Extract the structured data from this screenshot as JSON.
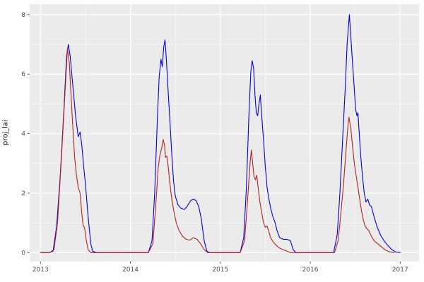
{
  "chart_data": {
    "type": "line",
    "title": "",
    "xlabel": "",
    "ylabel": "proj_lai",
    "xlim": [
      2012.88,
      2017.21
    ],
    "ylim": [
      -0.3,
      8.35
    ],
    "x_ticks": [
      2013,
      2014,
      2015,
      2016,
      2017
    ],
    "y_ticks": [
      0,
      2,
      4,
      6,
      8
    ],
    "x_minor": [
      2013.5,
      2014.5,
      2015.5,
      2016.5
    ],
    "y_minor": [
      1,
      3,
      5,
      7
    ],
    "grid": true,
    "legend": "none",
    "panel_bg": "#EBEBEB",
    "grid_color": "#FFFFFF",
    "tick_label_color": "#4d4d4d",
    "tick_mark_color": "#333333",
    "series": [
      {
        "name": "blue",
        "color": "#0000DD",
        "points": [
          [
            2013.0,
            0
          ],
          [
            2013.1,
            0
          ],
          [
            2013.14,
            0.05
          ],
          [
            2013.18,
            0.9
          ],
          [
            2013.22,
            2.6
          ],
          [
            2013.26,
            4.8
          ],
          [
            2013.29,
            6.6
          ],
          [
            2013.31,
            7.0
          ],
          [
            2013.33,
            6.6
          ],
          [
            2013.36,
            5.6
          ],
          [
            2013.39,
            4.6
          ],
          [
            2013.42,
            3.9
          ],
          [
            2013.44,
            4.05
          ],
          [
            2013.46,
            3.6
          ],
          [
            2013.48,
            2.9
          ],
          [
            2013.5,
            2.3
          ],
          [
            2013.53,
            1.2
          ],
          [
            2013.56,
            0.3
          ],
          [
            2013.58,
            0.05
          ],
          [
            2013.62,
            0
          ],
          [
            2014.2,
            0
          ],
          [
            2014.24,
            0.4
          ],
          [
            2014.27,
            2.0
          ],
          [
            2014.3,
            4.5
          ],
          [
            2014.32,
            5.9
          ],
          [
            2014.34,
            6.5
          ],
          [
            2014.355,
            6.25
          ],
          [
            2014.37,
            6.9
          ],
          [
            2014.385,
            7.15
          ],
          [
            2014.4,
            6.5
          ],
          [
            2014.42,
            5.4
          ],
          [
            2014.44,
            4.4
          ],
          [
            2014.46,
            3.3
          ],
          [
            2014.48,
            2.4
          ],
          [
            2014.5,
            1.9
          ],
          [
            2014.53,
            1.6
          ],
          [
            2014.56,
            1.5
          ],
          [
            2014.6,
            1.45
          ],
          [
            2014.63,
            1.55
          ],
          [
            2014.67,
            1.75
          ],
          [
            2014.7,
            1.8
          ],
          [
            2014.73,
            1.75
          ],
          [
            2014.76,
            1.55
          ],
          [
            2014.79,
            1.1
          ],
          [
            2014.82,
            0.4
          ],
          [
            2014.85,
            0.05
          ],
          [
            2014.88,
            0
          ],
          [
            2015.22,
            0
          ],
          [
            2015.26,
            0.5
          ],
          [
            2015.29,
            2.2
          ],
          [
            2015.32,
            4.8
          ],
          [
            2015.34,
            6.1
          ],
          [
            2015.355,
            6.45
          ],
          [
            2015.37,
            6.2
          ],
          [
            2015.385,
            5.3
          ],
          [
            2015.4,
            4.7
          ],
          [
            2015.415,
            4.6
          ],
          [
            2015.43,
            5.0
          ],
          [
            2015.445,
            5.3
          ],
          [
            2015.46,
            4.6
          ],
          [
            2015.48,
            3.8
          ],
          [
            2015.5,
            2.9
          ],
          [
            2015.52,
            2.2
          ],
          [
            2015.54,
            1.8
          ],
          [
            2015.56,
            1.5
          ],
          [
            2015.585,
            1.2
          ],
          [
            2015.61,
            1.0
          ],
          [
            2015.63,
            0.75
          ],
          [
            2015.66,
            0.5
          ],
          [
            2015.7,
            0.45
          ],
          [
            2015.74,
            0.45
          ],
          [
            2015.78,
            0.4
          ],
          [
            2015.81,
            0.1
          ],
          [
            2015.84,
            0
          ],
          [
            2016.26,
            0
          ],
          [
            2016.3,
            0.6
          ],
          [
            2016.33,
            2.0
          ],
          [
            2016.36,
            3.8
          ],
          [
            2016.39,
            5.6
          ],
          [
            2016.41,
            7.0
          ],
          [
            2016.425,
            7.6
          ],
          [
            2016.435,
            8.0
          ],
          [
            2016.45,
            7.3
          ],
          [
            2016.47,
            6.4
          ],
          [
            2016.49,
            5.5
          ],
          [
            2016.505,
            4.8
          ],
          [
            2016.52,
            4.6
          ],
          [
            2016.53,
            4.7
          ],
          [
            2016.545,
            4.0
          ],
          [
            2016.56,
            3.3
          ],
          [
            2016.58,
            2.6
          ],
          [
            2016.6,
            2.0
          ],
          [
            2016.62,
            1.7
          ],
          [
            2016.64,
            1.8
          ],
          [
            2016.66,
            1.6
          ],
          [
            2016.68,
            1.55
          ],
          [
            2016.71,
            1.2
          ],
          [
            2016.74,
            0.9
          ],
          [
            2016.78,
            0.6
          ],
          [
            2016.82,
            0.4
          ],
          [
            2016.86,
            0.25
          ],
          [
            2016.9,
            0.12
          ],
          [
            2016.95,
            0.02
          ],
          [
            2017.0,
            0
          ]
        ]
      },
      {
        "name": "red",
        "color": "#B22222",
        "points": [
          [
            2013.0,
            0
          ],
          [
            2013.1,
            0
          ],
          [
            2013.15,
            0.1
          ],
          [
            2013.19,
            1.0
          ],
          [
            2013.23,
            3.0
          ],
          [
            2013.27,
            5.2
          ],
          [
            2013.3,
            6.85
          ],
          [
            2013.32,
            6.4
          ],
          [
            2013.34,
            5.3
          ],
          [
            2013.36,
            4.2
          ],
          [
            2013.38,
            3.2
          ],
          [
            2013.4,
            2.6
          ],
          [
            2013.42,
            2.2
          ],
          [
            2013.44,
            2.0
          ],
          [
            2013.46,
            1.3
          ],
          [
            2013.475,
            0.9
          ],
          [
            2013.49,
            0.85
          ],
          [
            2013.51,
            0.4
          ],
          [
            2013.53,
            0.1
          ],
          [
            2013.56,
            0
          ],
          [
            2014.2,
            0
          ],
          [
            2014.25,
            0.3
          ],
          [
            2014.28,
            1.5
          ],
          [
            2014.31,
            2.9
          ],
          [
            2014.33,
            3.3
          ],
          [
            2014.35,
            3.55
          ],
          [
            2014.365,
            3.8
          ],
          [
            2014.38,
            3.6
          ],
          [
            2014.39,
            3.2
          ],
          [
            2014.405,
            3.25
          ],
          [
            2014.42,
            2.9
          ],
          [
            2014.44,
            2.3
          ],
          [
            2014.46,
            1.8
          ],
          [
            2014.48,
            1.45
          ],
          [
            2014.51,
            1.0
          ],
          [
            2014.54,
            0.75
          ],
          [
            2014.58,
            0.55
          ],
          [
            2014.62,
            0.45
          ],
          [
            2014.66,
            0.42
          ],
          [
            2014.7,
            0.5
          ],
          [
            2014.74,
            0.45
          ],
          [
            2014.78,
            0.3
          ],
          [
            2014.82,
            0.1
          ],
          [
            2014.86,
            0
          ],
          [
            2015.22,
            0
          ],
          [
            2015.27,
            0.4
          ],
          [
            2015.3,
            1.6
          ],
          [
            2015.33,
            3.0
          ],
          [
            2015.345,
            3.45
          ],
          [
            2015.36,
            3.0
          ],
          [
            2015.375,
            2.55
          ],
          [
            2015.39,
            2.45
          ],
          [
            2015.405,
            2.6
          ],
          [
            2015.42,
            2.2
          ],
          [
            2015.44,
            1.7
          ],
          [
            2015.46,
            1.35
          ],
          [
            2015.48,
            1.0
          ],
          [
            2015.5,
            0.85
          ],
          [
            2015.52,
            0.9
          ],
          [
            2015.54,
            0.7
          ],
          [
            2015.56,
            0.5
          ],
          [
            2015.59,
            0.35
          ],
          [
            2015.62,
            0.25
          ],
          [
            2015.66,
            0.15
          ],
          [
            2015.7,
            0.1
          ],
          [
            2015.74,
            0.05
          ],
          [
            2015.78,
            0
          ],
          [
            2016.27,
            0
          ],
          [
            2016.31,
            0.4
          ],
          [
            2016.34,
            1.3
          ],
          [
            2016.37,
            2.3
          ],
          [
            2016.4,
            3.5
          ],
          [
            2016.42,
            4.3
          ],
          [
            2016.43,
            4.55
          ],
          [
            2016.45,
            4.2
          ],
          [
            2016.47,
            3.6
          ],
          [
            2016.49,
            3.0
          ],
          [
            2016.51,
            2.6
          ],
          [
            2016.53,
            2.2
          ],
          [
            2016.55,
            1.8
          ],
          [
            2016.57,
            1.4
          ],
          [
            2016.59,
            1.1
          ],
          [
            2016.61,
            0.9
          ],
          [
            2016.63,
            0.8
          ],
          [
            2016.65,
            0.75
          ],
          [
            2016.68,
            0.55
          ],
          [
            2016.71,
            0.4
          ],
          [
            2016.75,
            0.3
          ],
          [
            2016.79,
            0.2
          ],
          [
            2016.83,
            0.1
          ],
          [
            2016.88,
            0.03
          ],
          [
            2016.93,
            0
          ]
        ]
      }
    ]
  }
}
